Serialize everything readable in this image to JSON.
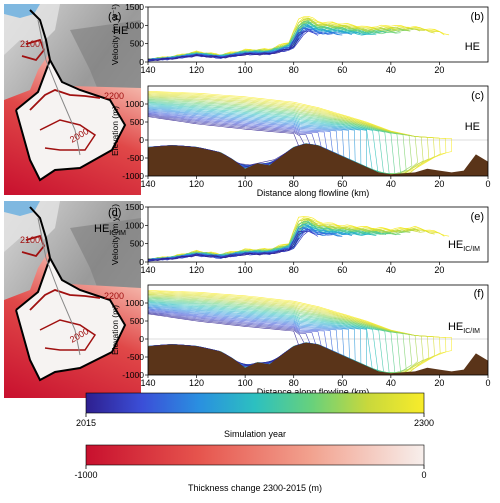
{
  "chart_data": [
    {
      "type": "line",
      "panel": "b",
      "label": "HE",
      "ylabel": "Velocity (m yr⁻¹)",
      "xlim": [
        140,
        0
      ],
      "ylim": [
        0,
        1500
      ],
      "xticks": [
        140,
        120,
        100,
        80,
        60,
        40,
        20
      ],
      "yticks": [
        0,
        500,
        1000,
        1500
      ],
      "series": [
        {
          "x": [
            140,
            130,
            120,
            110,
            100,
            90,
            82,
            78,
            75,
            70,
            60,
            50,
            40,
            30,
            20,
            15
          ],
          "y": [
            80,
            150,
            280,
            200,
            330,
            350,
            550,
            1150,
            1300,
            1100,
            1050,
            950,
            1000,
            950,
            850,
            680
          ]
        },
        {
          "x": [
            140,
            130,
            120,
            110,
            100,
            90,
            80,
            75,
            70,
            60,
            50,
            40,
            30,
            20,
            15
          ],
          "y": [
            60,
            130,
            260,
            160,
            300,
            320,
            520,
            1250,
            1050,
            1000,
            900,
            900,
            950,
            800,
            650
          ]
        }
      ]
    },
    {
      "type": "line",
      "panel": "c",
      "label": "HE",
      "ylabel": "Elevation (m)",
      "xlabel": "Distance along flowline (km)",
      "xlim": [
        140,
        0
      ],
      "ylim": [
        -1000,
        1500
      ],
      "xticks": [
        140,
        120,
        100,
        80,
        60,
        40,
        20,
        0
      ],
      "yticks": [
        -1000,
        -500,
        0,
        500,
        1000
      ],
      "bed": {
        "x": [
          140,
          130,
          120,
          110,
          105,
          100,
          95,
          90,
          85,
          80,
          75,
          70,
          60,
          50,
          45,
          40,
          30,
          25,
          20,
          15,
          10,
          5,
          0
        ],
        "y": [
          -200,
          -150,
          -200,
          -350,
          -550,
          -800,
          -650,
          -700,
          -450,
          -200,
          -100,
          -150,
          -450,
          -750,
          -900,
          -950,
          -900,
          -800,
          -850,
          -900,
          -850,
          -400,
          -600
        ]
      },
      "surface_2015": {
        "x": [
          140,
          120,
          100,
          80,
          70,
          60,
          50,
          40,
          30,
          20,
          15
        ],
        "y": [
          1350,
          1300,
          1200,
          1050,
          900,
          700,
          500,
          250,
          100,
          50,
          40
        ]
      },
      "surface_2300": {
        "x": [
          140,
          120,
          100,
          80,
          78
        ],
        "y": [
          650,
          450,
          300,
          180,
          130
        ]
      }
    },
    {
      "type": "line",
      "panel": "e",
      "label": "HE",
      "label_sub": "IC/IM",
      "ylabel": "Velocity (m yr⁻¹)",
      "xlim": [
        140,
        0
      ],
      "ylim": [
        0,
        1500
      ],
      "xticks": [
        140,
        120,
        100,
        80,
        60,
        40,
        20
      ],
      "yticks": [
        0,
        500,
        1000,
        1500
      ],
      "series": [
        {
          "x": [
            140,
            130,
            120,
            110,
            100,
            90,
            82,
            78,
            75,
            70,
            60,
            50,
            40,
            30,
            20,
            15
          ],
          "y": [
            80,
            150,
            300,
            220,
            340,
            350,
            520,
            1200,
            1280,
            1100,
            1000,
            950,
            900,
            950,
            800,
            650
          ]
        },
        {
          "x": [
            140,
            130,
            120,
            110,
            100,
            90,
            80,
            75,
            70,
            60,
            50,
            40,
            30,
            20,
            15
          ],
          "y": [
            60,
            130,
            260,
            160,
            300,
            330,
            500,
            1250,
            1000,
            950,
            900,
            850,
            900,
            780,
            620
          ]
        }
      ]
    },
    {
      "type": "line",
      "panel": "f",
      "label": "HE",
      "label_sub": "IC/IM",
      "ylabel": "Elevation (m)",
      "xlabel": "Distance along flowline (km)",
      "xlim": [
        140,
        0
      ],
      "ylim": [
        -1000,
        1500
      ],
      "xticks": [
        140,
        120,
        100,
        80,
        60,
        40,
        20,
        0
      ],
      "yticks": [
        -1000,
        -500,
        0,
        500,
        1000
      ],
      "bed": {
        "x": [
          140,
          130,
          120,
          110,
          105,
          100,
          95,
          90,
          85,
          80,
          75,
          70,
          60,
          50,
          45,
          40,
          30,
          25,
          20,
          15,
          10,
          5,
          0
        ],
        "y": [
          -200,
          -150,
          -200,
          -350,
          -550,
          -800,
          -650,
          -700,
          -450,
          -200,
          -100,
          -150,
          -450,
          -750,
          -900,
          -950,
          -900,
          -800,
          -850,
          -900,
          -850,
          -400,
          -600
        ]
      },
      "surface_2015": {
        "x": [
          140,
          120,
          100,
          80,
          70,
          60,
          50,
          40,
          30,
          20,
          15
        ],
        "y": [
          1350,
          1300,
          1200,
          1050,
          900,
          700,
          500,
          250,
          100,
          50,
          40
        ]
      },
      "surface_2300": {
        "x": [
          140,
          120,
          100,
          80,
          78
        ],
        "y": [
          700,
          500,
          350,
          220,
          150
        ]
      }
    }
  ],
  "maps": [
    {
      "panel": "a",
      "label": "HE",
      "contours": [
        "2100",
        "2200",
        "2000"
      ]
    },
    {
      "panel": "d",
      "label": "HE",
      "label_sub": "IC/IM",
      "contours": [
        "2100",
        "2200",
        "2000"
      ]
    }
  ],
  "panel_letters": {
    "a": "(a)",
    "b": "(b)",
    "c": "(c)",
    "d": "(d)",
    "e": "(e)",
    "f": "(f)"
  },
  "colorbars": {
    "year": {
      "title": "Simulation year",
      "min": "2015",
      "max": "2300",
      "colors": [
        "#2e1f8f",
        "#3b4fd8",
        "#2a8fe0",
        "#2cc0c0",
        "#67d17c",
        "#c8d83c",
        "#f8ec2a"
      ]
    },
    "thickness": {
      "title": "Thickness change 2300-2015 (m)",
      "min": "-1000",
      "max": "0",
      "colors": [
        "#c8102e",
        "#e6544d",
        "#f2a28f",
        "#f7efec"
      ]
    }
  },
  "colors": {
    "bed": "#5a3419",
    "contour": "#a01010",
    "outline": "#000000"
  }
}
